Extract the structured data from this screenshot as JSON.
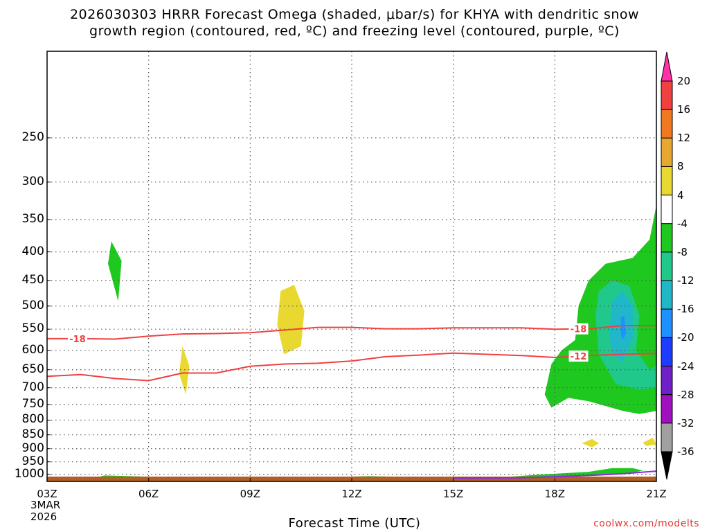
{
  "chart_data": {
    "type": "contour",
    "title_line1": "2026030303 HRRR Forecast Omega (shaded, μbar/s) for KHYA with dendritic snow",
    "title_line2": "growth region (contoured, red, ºC) and freezing level (contoured, purple, ºC)",
    "xlabel": "Forecast Time (UTC)",
    "ylabel": "",
    "source": "coolwx.com/modelts",
    "x_ticks": [
      {
        "label": "03Z",
        "hour": 3
      },
      {
        "label": "06Z",
        "hour": 6
      },
      {
        "label": "09Z",
        "hour": 9
      },
      {
        "label": "12Z",
        "hour": 12
      },
      {
        "label": "15Z",
        "hour": 15
      },
      {
        "label": "18Z",
        "hour": 18
      },
      {
        "label": "21Z",
        "hour": 21
      }
    ],
    "x_start_date": [
      "3MAR",
      "2026"
    ],
    "x_range_hours": [
      3,
      21
    ],
    "y_ticks": [
      250,
      300,
      350,
      400,
      450,
      500,
      550,
      600,
      650,
      700,
      750,
      800,
      850,
      900,
      950,
      1000
    ],
    "y_range_hpa": [
      175,
      1030
    ],
    "y_scale": "log-pressure",
    "grid": true,
    "colorbar": {
      "labels": [
        "20",
        "16",
        "12",
        "8",
        "4",
        "-4",
        "-8",
        "-12",
        "-16",
        "-20",
        "-24",
        "-28",
        "-32",
        "-36"
      ],
      "colors": [
        "#ff33a8",
        "#f04040",
        "#f07820",
        "#e8a830",
        "#e8d830",
        "#ffffff",
        "#1ec81e",
        "#20c88c",
        "#20b8c8",
        "#1e90ff",
        "#1e3cff",
        "#7020c8",
        "#a010c0",
        "#a0a0a0"
      ]
    },
    "contours_isotherm_red": [
      {
        "value_label": "-18",
        "label_positions_hours": [
          3.9,
          18.7
        ],
        "points": [
          [
            3,
            572
          ],
          [
            4,
            572
          ],
          [
            5,
            573
          ],
          [
            6,
            566
          ],
          [
            7,
            561
          ],
          [
            8,
            560
          ],
          [
            9,
            558
          ],
          [
            10,
            552
          ],
          [
            11,
            546
          ],
          [
            12,
            546
          ],
          [
            13,
            549
          ],
          [
            14,
            549
          ],
          [
            15,
            547
          ],
          [
            16,
            547
          ],
          [
            17,
            547
          ],
          [
            18,
            550
          ],
          [
            19,
            549
          ],
          [
            20,
            542
          ],
          [
            21,
            542
          ]
        ]
      },
      {
        "value_label": "-12",
        "label_positions_hours": [
          18.7
        ],
        "points": [
          [
            3,
            668
          ],
          [
            4,
            663
          ],
          [
            5,
            674
          ],
          [
            6,
            680
          ],
          [
            7,
            659
          ],
          [
            8,
            659
          ],
          [
            9,
            641
          ],
          [
            10,
            635
          ],
          [
            11,
            633
          ],
          [
            12,
            627
          ],
          [
            13,
            616
          ],
          [
            14,
            612
          ],
          [
            15,
            607
          ],
          [
            16,
            610
          ],
          [
            17,
            613
          ],
          [
            18,
            618
          ],
          [
            19,
            613
          ],
          [
            20,
            610
          ],
          [
            21,
            608
          ]
        ]
      }
    ],
    "contour_freezing_purple": {
      "points": [
        [
          15,
          1028
        ],
        [
          16,
          1022
        ],
        [
          17,
          1015
        ],
        [
          18,
          1010
        ],
        [
          19,
          1005
        ],
        [
          20,
          998
        ],
        [
          21,
          987
        ]
      ]
    },
    "omega_regions": [
      {
        "class": "-4 to -8",
        "polygon": [
          [
            4.9,
            383
          ],
          [
            5.2,
            415
          ],
          [
            5.1,
            490
          ],
          [
            4.8,
            420
          ]
        ]
      },
      {
        "class": "4 to 8",
        "polygon": [
          [
            10.3,
            458
          ],
          [
            10.6,
            510
          ],
          [
            10.5,
            590
          ],
          [
            10.0,
            610
          ],
          [
            9.8,
            540
          ],
          [
            9.9,
            470
          ]
        ]
      },
      {
        "class": "4 to 8",
        "polygon": [
          [
            7.0,
            590
          ],
          [
            7.2,
            640
          ],
          [
            7.1,
            720
          ],
          [
            6.9,
            660
          ]
        ]
      },
      {
        "class": "4 to 8",
        "polygon": [
          [
            18.8,
            880
          ],
          [
            19.1,
            865
          ],
          [
            19.3,
            880
          ],
          [
            19.1,
            895
          ]
        ]
      },
      {
        "class": "4 to 8",
        "polygon": [
          [
            20.6,
            878
          ],
          [
            20.9,
            860
          ],
          [
            21.0,
            885
          ],
          [
            20.7,
            890
          ]
        ]
      },
      {
        "class": "-4 to -8",
        "polygon": [
          [
            17.7,
            720
          ],
          [
            17.9,
            635
          ],
          [
            18.2,
            600
          ],
          [
            18.6,
            575
          ],
          [
            18.7,
            500
          ],
          [
            19.0,
            450
          ],
          [
            19.5,
            420
          ],
          [
            20.3,
            410
          ],
          [
            20.8,
            380
          ],
          [
            21.0,
            330
          ],
          [
            21.0,
            770
          ],
          [
            20.5,
            780
          ],
          [
            20.0,
            770
          ],
          [
            19.0,
            740
          ],
          [
            18.4,
            730
          ],
          [
            17.9,
            760
          ]
        ]
      },
      {
        "class": "-8 to -12",
        "polygon": [
          [
            19.2,
            520
          ],
          [
            19.3,
            470
          ],
          [
            19.7,
            450
          ],
          [
            20.2,
            460
          ],
          [
            20.5,
            520
          ],
          [
            20.4,
            600
          ],
          [
            20.8,
            650
          ],
          [
            21.0,
            640
          ],
          [
            21.0,
            700
          ],
          [
            20.5,
            705
          ],
          [
            19.8,
            690
          ],
          [
            19.3,
            610
          ]
        ]
      },
      {
        "class": "-12 to -16",
        "polygon": [
          [
            19.6,
            560
          ],
          [
            19.7,
            490
          ],
          [
            20.0,
            470
          ],
          [
            20.3,
            500
          ],
          [
            20.3,
            570
          ],
          [
            20.0,
            630
          ],
          [
            19.7,
            610
          ]
        ]
      },
      {
        "class": "-16 to -20",
        "polygon": [
          [
            19.95,
            525
          ],
          [
            20.05,
            520
          ],
          [
            20.1,
            560
          ],
          [
            20.0,
            575
          ],
          [
            19.95,
            560
          ]
        ]
      },
      {
        "class": "-4 to -8",
        "polygon": [
          [
            4.3,
            1018
          ],
          [
            4.7,
            1005
          ],
          [
            6.0,
            1010
          ],
          [
            8.0,
            1018
          ],
          [
            10.5,
            1015
          ],
          [
            10.8,
            1022
          ],
          [
            9.0,
            1025
          ],
          [
            6.0,
            1022
          ],
          [
            4.2,
            1025
          ]
        ]
      },
      {
        "class": "-4 to -8",
        "polygon": [
          [
            11.3,
            1012
          ],
          [
            12.5,
            1008
          ],
          [
            14.0,
            1012
          ],
          [
            15.5,
            1015
          ],
          [
            16.5,
            1012
          ],
          [
            17.5,
            1002
          ],
          [
            19.0,
            990
          ],
          [
            19.7,
            975
          ],
          [
            20.3,
            975
          ],
          [
            20.6,
            985
          ],
          [
            20.3,
            995
          ],
          [
            19.0,
            1005
          ],
          [
            18.0,
            1015
          ],
          [
            16.5,
            1022
          ],
          [
            15.0,
            1025
          ],
          [
            13.0,
            1022
          ],
          [
            11.3,
            1022
          ]
        ]
      },
      {
        "class": "-8 to -12",
        "polygon": [
          [
            4.9,
            1016
          ],
          [
            5.1,
            1014
          ],
          [
            5.2,
            1020
          ],
          [
            5.0,
            1022
          ]
        ]
      }
    ],
    "ground_color": "#b25e28"
  }
}
